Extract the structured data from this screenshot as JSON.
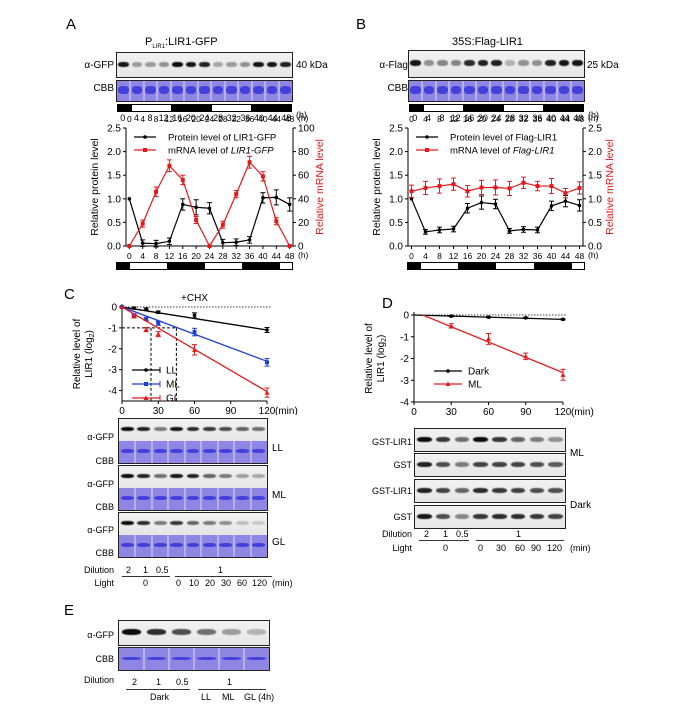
{
  "panels": {
    "A": {
      "label": "A",
      "title": "P",
      "title_sub": "LIR1",
      "title_rest": ":LIR1-GFP",
      "blot_rows": [
        "α-GFP",
        "CBB"
      ],
      "size_marker": "40 kDa",
      "band_intensity": [
        0.95,
        0.35,
        0.35,
        0.4,
        1.0,
        0.95,
        0.9,
        0.3,
        0.35,
        0.4,
        0.95,
        0.95,
        0.9
      ],
      "time_unit": "(h)"
    },
    "B": {
      "label": "B",
      "title": "35S:Flag-LIR1",
      "blot_rows": [
        "α-Flag",
        "CBB"
      ],
      "size_marker": "25 kDa",
      "band_intensity": [
        0.95,
        0.4,
        0.45,
        0.45,
        0.85,
        0.9,
        0.9,
        0.25,
        0.4,
        0.4,
        0.9,
        0.95,
        0.95
      ],
      "time_unit": "(h)"
    },
    "C": {
      "label": "C",
      "treatment": "+CHX",
      "blots": [
        {
          "rows": [
            "α-GFP",
            "CBB"
          ],
          "condition": "LL",
          "band_intensity": [
            1.0,
            0.9,
            0.5,
            0.95,
            0.85,
            0.8,
            0.7,
            0.6,
            0.55
          ]
        },
        {
          "rows": [
            "α-GFP",
            "CBB"
          ],
          "condition": "ML",
          "band_intensity": [
            1.0,
            0.9,
            0.55,
            0.95,
            0.9,
            0.6,
            0.5,
            0.35,
            0.3
          ]
        },
        {
          "rows": [
            "α-GFP",
            "CBB"
          ],
          "condition": "GL",
          "band_intensity": [
            1.0,
            0.85,
            0.5,
            0.8,
            0.6,
            0.5,
            0.4,
            0.2,
            0.15
          ]
        }
      ],
      "dilution_label": "Dilution",
      "dilution_values": [
        "2",
        "1",
        "0.5",
        "1"
      ],
      "light_label": "Light",
      "light_values": [
        "0",
        "0",
        "10",
        "20",
        "30",
        "60",
        "120"
      ],
      "light_dark_value": "0",
      "light_unit": "(min)"
    },
    "D": {
      "label": "D",
      "blots": [
        {
          "row": "GST-LIR1",
          "band_intensity": [
            1.0,
            0.8,
            0.55,
            1.0,
            0.8,
            0.6,
            0.5,
            0.4
          ]
        },
        {
          "row": "GST",
          "band_intensity": [
            0.9,
            0.7,
            0.5,
            0.75,
            0.75,
            0.75,
            0.7,
            0.65
          ]
        },
        {
          "row": "GST-LIR1",
          "band_intensity": [
            0.9,
            0.75,
            0.6,
            0.85,
            0.8,
            0.75,
            0.7,
            0.7
          ]
        },
        {
          "row": "GST",
          "band_intensity": [
            0.95,
            0.7,
            0.45,
            0.8,
            0.85,
            0.85,
            0.8,
            0.75
          ]
        }
      ],
      "groups": [
        "ML",
        "Dark"
      ],
      "dilution_label": "Dilution",
      "dilution_values": [
        "2",
        "1",
        "0.5",
        "1"
      ],
      "light_label": "Light",
      "light_dark_value": "0",
      "light_values": [
        "0",
        "30",
        "60",
        "90",
        "120"
      ],
      "light_unit": "(min)"
    },
    "E": {
      "label": "E",
      "blot_rows": [
        "α-GFP",
        "CBB"
      ],
      "band_intensity": [
        1.0,
        0.85,
        0.7,
        0.55,
        0.35,
        0.25
      ],
      "dilution_label": "Dilution",
      "dilution_values": [
        "2",
        "1",
        "0.5",
        "1"
      ],
      "groups": [
        "Dark",
        "LL",
        "ML",
        "GL (4h)"
      ]
    }
  },
  "chart_data": [
    {
      "id": "A",
      "type": "line",
      "x": [
        0,
        4,
        8,
        12,
        16,
        20,
        24,
        28,
        32,
        36,
        40,
        44,
        48
      ],
      "xlabel": "(h)",
      "ylabel": "Relative protein level",
      "y2label": "Relative mRNA level",
      "ylim": [
        0,
        2.5
      ],
      "y2lim": [
        0,
        100
      ],
      "yticks": [
        "0.0",
        "0.5",
        "1.0",
        "1.5",
        "2.0",
        "2.5"
      ],
      "y2ticks": [
        "0",
        "20",
        "40",
        "60",
        "80",
        "100"
      ],
      "xticks": [
        "0",
        "4",
        "8",
        "12",
        "16",
        "20",
        "24",
        "28",
        "32",
        "36",
        "40",
        "44",
        "48"
      ],
      "light_dark": [
        "dark",
        "light",
        "light",
        "light",
        "dark",
        "dark",
        "dark",
        "light",
        "light",
        "light",
        "dark",
        "dark",
        "dark",
        "light"
      ],
      "series": [
        {
          "name": "Protein level of LIR1-GFP",
          "axis": "left",
          "color": "#000000",
          "values": [
            1.0,
            0.06,
            0.05,
            0.1,
            0.88,
            0.82,
            0.8,
            0.07,
            0.08,
            0.13,
            1.02,
            1.03,
            0.88
          ],
          "errors": [
            0,
            0.07,
            0.07,
            0.07,
            0.12,
            0.16,
            0.12,
            0.07,
            0.07,
            0.07,
            0.11,
            0.16,
            0.14
          ]
        },
        {
          "name": "mRNA level of LIR1-GFP",
          "name_plain": "mRNA level of ",
          "name_italic": "LIR1-GFP",
          "axis": "right",
          "color": "#e31a1c",
          "values": [
            0,
            19,
            46,
            68,
            56,
            22,
            0,
            18,
            44,
            71,
            59,
            21,
            0
          ],
          "errors": [
            0,
            3,
            4,
            5,
            4,
            3,
            0,
            3,
            3,
            5,
            4,
            3,
            0
          ]
        }
      ]
    },
    {
      "id": "B",
      "type": "line",
      "x": [
        0,
        4,
        8,
        12,
        16,
        20,
        24,
        28,
        32,
        36,
        40,
        44,
        48
      ],
      "xlabel": "(h)",
      "ylabel": "Relative protein level",
      "y2label": "Relative mRNA level",
      "ylim": [
        0,
        2.5
      ],
      "y2lim": [
        0,
        2.5
      ],
      "yticks": [
        "0.0",
        "0.5",
        "1.0",
        "1.5",
        "2.0",
        "2.5"
      ],
      "y2ticks": [
        "0.0",
        "0.5",
        "1.0",
        "1.5",
        "2.0",
        "2.5"
      ],
      "xticks": [
        "0",
        "4",
        "8",
        "12",
        "16",
        "20",
        "24",
        "28",
        "32",
        "36",
        "40",
        "44",
        "48"
      ],
      "light_dark": [
        "dark",
        "light",
        "light",
        "light",
        "dark",
        "dark",
        "dark",
        "light",
        "light",
        "light",
        "dark",
        "dark",
        "dark",
        "light"
      ],
      "series": [
        {
          "name": "Protein level of Flag-LIR1",
          "axis": "left",
          "color": "#000000",
          "values": [
            1.0,
            0.3,
            0.34,
            0.36,
            0.8,
            0.92,
            0.89,
            0.32,
            0.35,
            0.34,
            0.85,
            0.95,
            0.86
          ],
          "errors": [
            0,
            0.05,
            0.06,
            0.06,
            0.1,
            0.14,
            0.1,
            0.05,
            0.06,
            0.06,
            0.1,
            0.12,
            0.12
          ]
        },
        {
          "name": "mRNA level of Flag-LIR1",
          "name_plain": "mRNA level of ",
          "name_italic": "Flag-LIR1",
          "axis": "right",
          "color": "#e31a1c",
          "values": [
            1.16,
            1.23,
            1.27,
            1.31,
            1.16,
            1.24,
            1.24,
            1.22,
            1.34,
            1.27,
            1.27,
            1.12,
            1.23
          ],
          "errors": [
            0.13,
            0.14,
            0.15,
            0.13,
            0.12,
            0.15,
            0.16,
            0.15,
            0.12,
            0.1,
            0.16,
            0.1,
            0.13
          ]
        }
      ]
    },
    {
      "id": "C",
      "type": "line",
      "title": "+CHX",
      "xlabel": "(min)",
      "ylabel": "Relative level of LIR1 (log2)",
      "ylabel_line1": "Relative level of",
      "ylabel_line2": "LIR1 (log",
      "ylabel_sub": "2",
      "ylabel_end": ")",
      "xlim": [
        0,
        120
      ],
      "ylim": [
        -4.5,
        0
      ],
      "xticks": [
        "0",
        "30",
        "60",
        "90",
        "120"
      ],
      "yticks": [
        "0",
        "-1",
        "-2",
        "-3",
        "-4"
      ],
      "reference_line_y": -1,
      "half_life_markers_x": [
        24,
        45
      ],
      "series": [
        {
          "name": "LL",
          "color": "#000000",
          "marker": "circle",
          "x": [
            0,
            10,
            20,
            30,
            60,
            120
          ],
          "values": [
            0,
            -0.05,
            -0.1,
            -0.25,
            -0.4,
            -1.1
          ],
          "errors": [
            0,
            0.05,
            0.05,
            0.06,
            0.12,
            0.12
          ],
          "fit": [
            0,
            -1.1
          ]
        },
        {
          "name": "ML",
          "color": "#1f3fd6",
          "marker": "square",
          "x": [
            0,
            10,
            20,
            30,
            60,
            120
          ],
          "values": [
            0,
            -0.4,
            -0.58,
            -0.78,
            -1.2,
            -2.65
          ],
          "errors": [
            0,
            0.07,
            0.07,
            0.1,
            0.18,
            0.18
          ],
          "fit": [
            0,
            -2.6
          ]
        },
        {
          "name": "GL",
          "color": "#e31a1c",
          "marker": "triangle",
          "x": [
            0,
            10,
            20,
            30,
            60,
            120
          ],
          "values": [
            0,
            -0.45,
            -1.08,
            -1.3,
            -2.05,
            -4.1
          ],
          "errors": [
            0,
            0.07,
            0.1,
            0.12,
            0.25,
            0.22
          ],
          "fit": [
            0,
            -4.05
          ]
        }
      ]
    },
    {
      "id": "D",
      "type": "line",
      "xlabel": "(min)",
      "ylabel": "Relative level of LIR1 (log2)",
      "ylabel_line1": "Relative level of",
      "ylabel_line2": "LIR1 (log",
      "ylabel_sub": "2",
      "ylabel_end": ")",
      "xlim": [
        0,
        120
      ],
      "ylim": [
        -4,
        0
      ],
      "xticks": [
        "0",
        "30",
        "60",
        "90",
        "120"
      ],
      "yticks": [
        "0",
        "-1",
        "-2",
        "-3",
        "-4"
      ],
      "series": [
        {
          "name": "Dark",
          "color": "#000000",
          "marker": "circle",
          "x": [
            30,
            60,
            90,
            120
          ],
          "values": [
            -0.05,
            -0.1,
            -0.13,
            -0.2
          ],
          "errors": [
            0.03,
            0.03,
            0.03,
            0.03
          ],
          "fit_x": [
            0,
            120
          ],
          "fit": [
            0,
            -0.2
          ]
        },
        {
          "name": "ML",
          "color": "#e31a1c",
          "marker": "triangle",
          "x": [
            30,
            60,
            90,
            120
          ],
          "values": [
            -0.5,
            -1.1,
            -1.9,
            -2.75
          ],
          "errors": [
            0.1,
            0.25,
            0.15,
            0.25
          ],
          "fit_x": [
            7,
            120
          ],
          "fit": [
            0,
            -2.65
          ]
        }
      ]
    }
  ]
}
